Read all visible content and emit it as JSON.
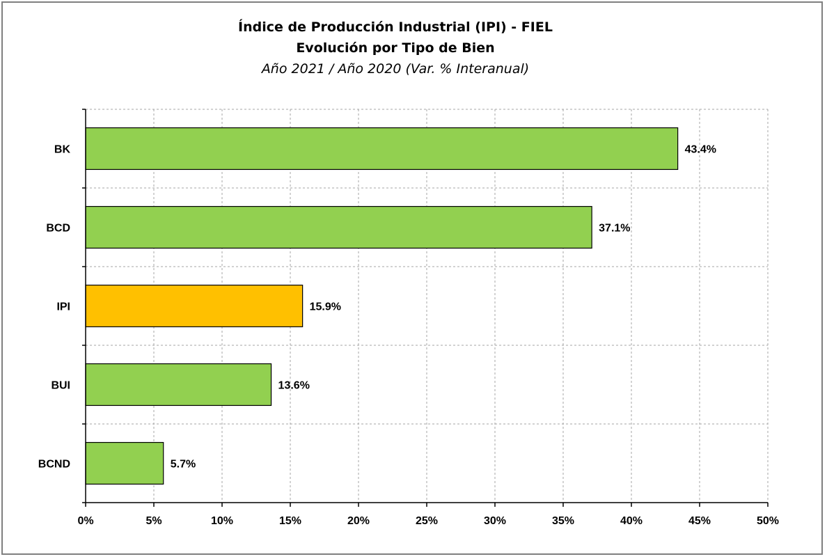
{
  "chart_data": {
    "type": "bar",
    "orientation": "horizontal",
    "title": "Índice de Producción Industrial (IPI) - FIEL",
    "subtitle": "Evolución por Tipo de Bien",
    "subtitle2": "Año 2021 /  Año 2020 (Var. % Interanual)",
    "categories": [
      "BK",
      "BCD",
      "IPI",
      "BUI",
      "BCND"
    ],
    "values": [
      43.4,
      37.1,
      15.9,
      13.6,
      5.7
    ],
    "value_labels": [
      "43.4%",
      "37.1%",
      "15.9%",
      "13.6%",
      "5.7%"
    ],
    "colors": [
      "#92d050",
      "#92d050",
      "#ffc000",
      "#92d050",
      "#92d050"
    ],
    "xlim": [
      0,
      50
    ],
    "xticks": [
      0,
      5,
      10,
      15,
      20,
      25,
      30,
      35,
      40,
      45,
      50
    ],
    "xtick_labels": [
      "0%",
      "5%",
      "10%",
      "15%",
      "20%",
      "25%",
      "30%",
      "35%",
      "40%",
      "45%",
      "50%"
    ],
    "grid": true,
    "legend": "none"
  }
}
